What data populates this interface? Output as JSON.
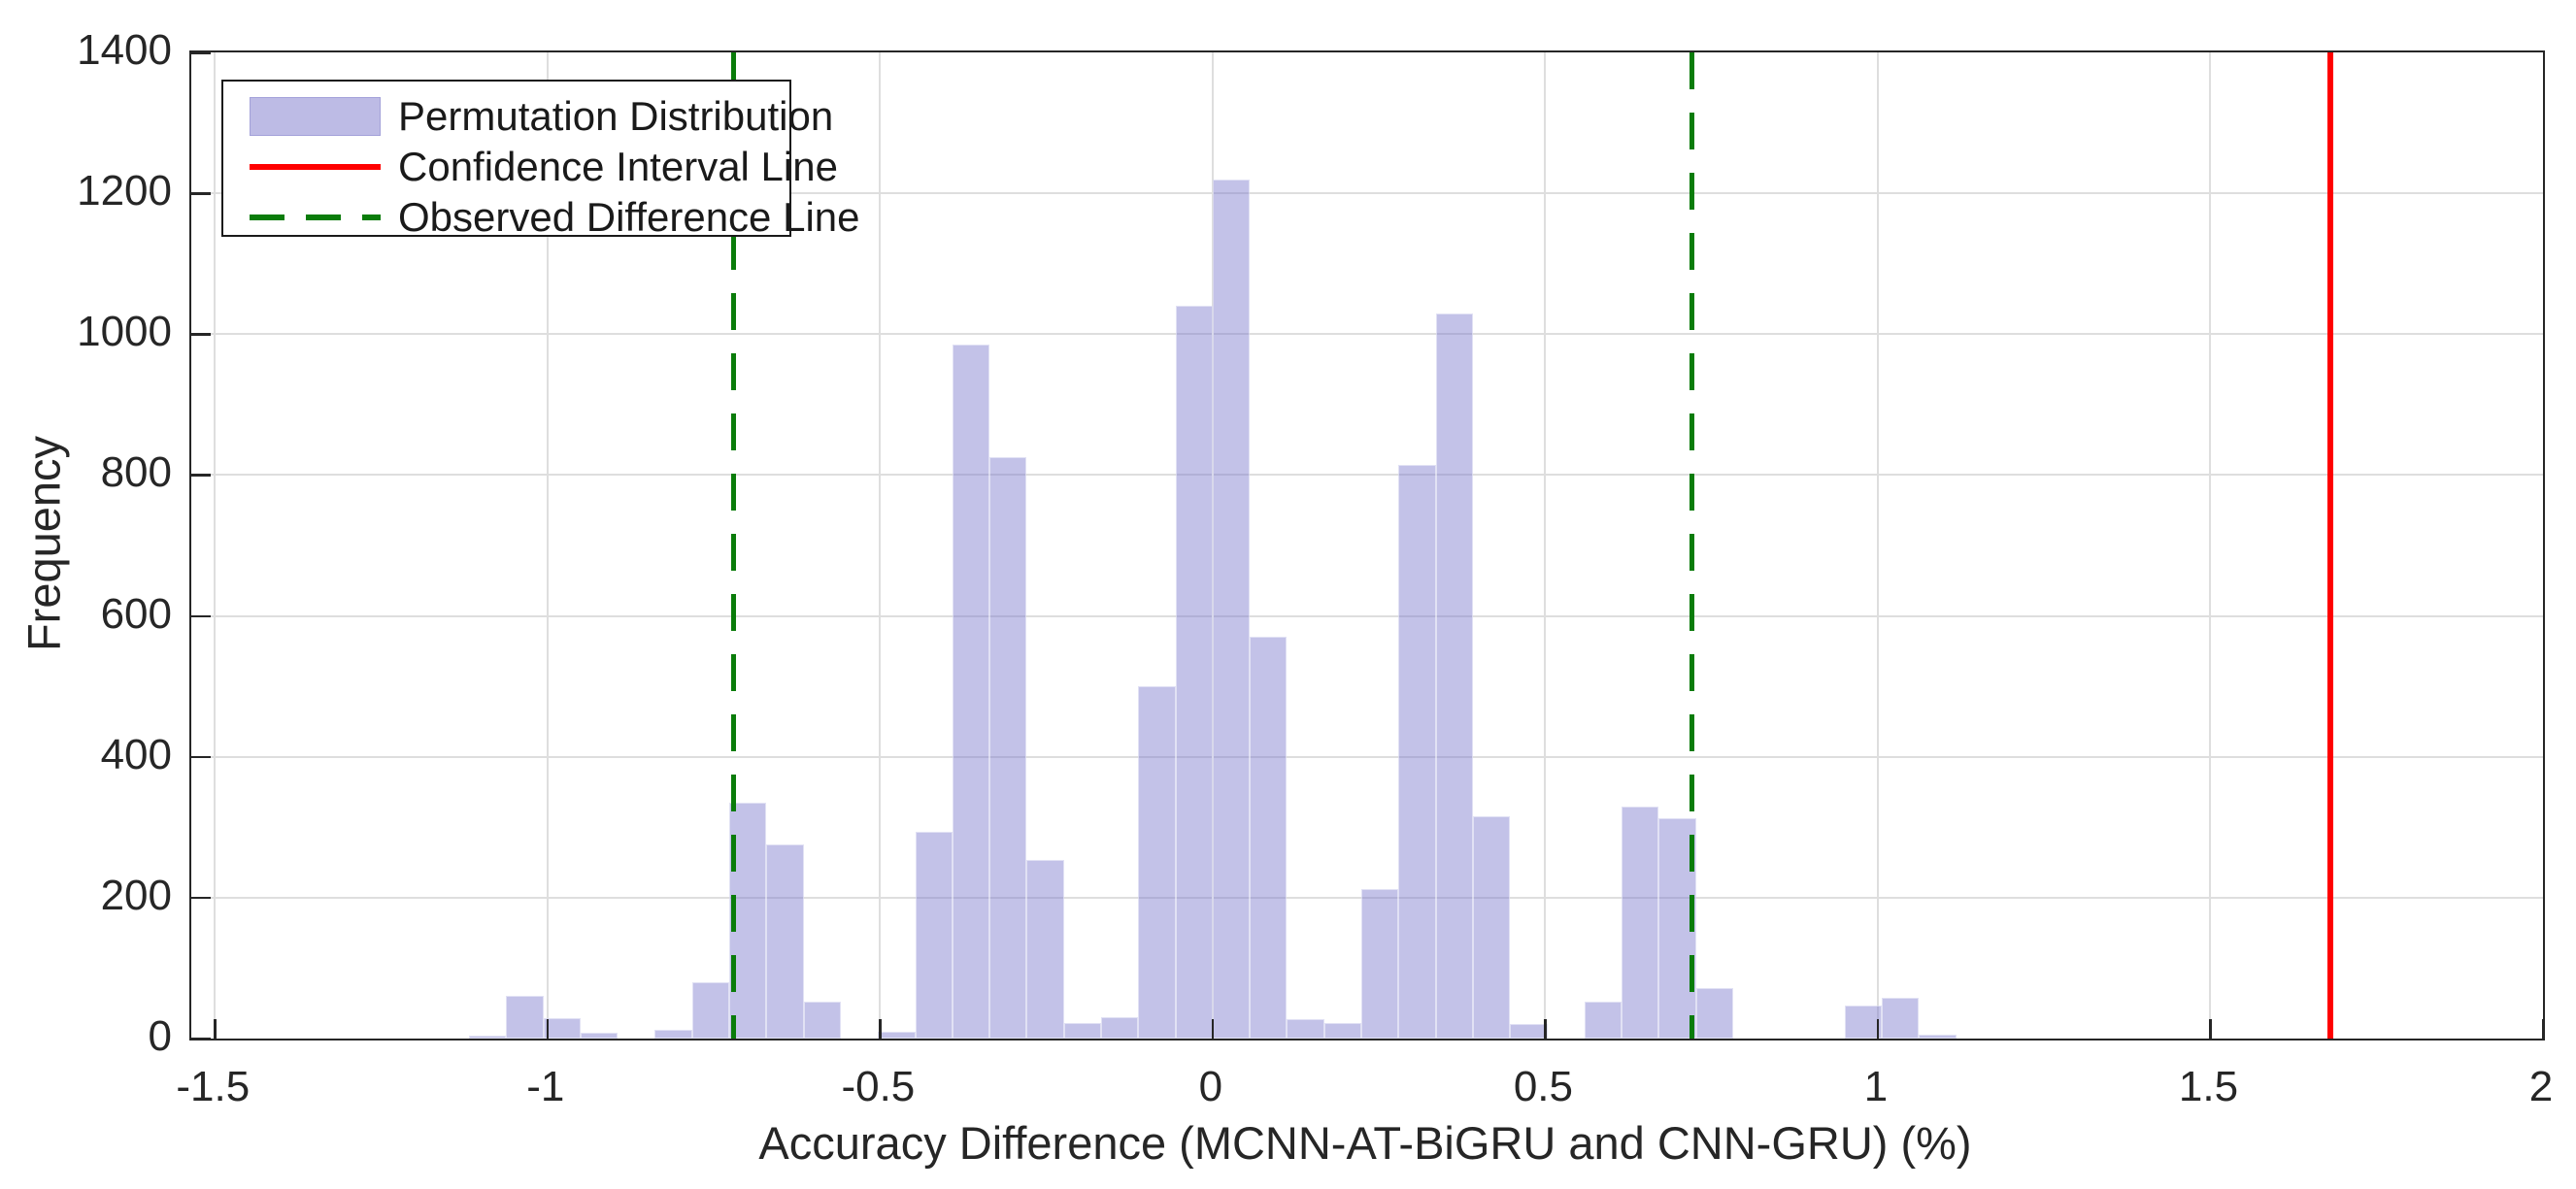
{
  "figure": {
    "background_color": "#ffffff",
    "axis_color": "#262626",
    "grid_color": "#dedede"
  },
  "legend": {
    "items": [
      {
        "label": "Permutation Distribution",
        "swatch": "patch",
        "color": "#c7c5e9"
      },
      {
        "label": "Confidence Interval Line",
        "swatch": "solid-line",
        "color": "#ff0000"
      },
      {
        "label": "Observed Difference Line",
        "swatch": "dashed-line",
        "color": "#0a7c0a"
      }
    ],
    "position": "top-left"
  },
  "chart_data": {
    "type": "bar",
    "subtype": "histogram",
    "title": "",
    "xlabel": "Accuracy Difference (MCNN-AT-BiGRU and CNN-GRU) (%)",
    "ylabel": "Frequency",
    "xlim": [
      -1.5355,
      2.0
    ],
    "ylim": [
      0,
      1400
    ],
    "grid": true,
    "x_ticks": [
      {
        "v": -1.5,
        "label": "-1.5"
      },
      {
        "v": -1.0,
        "label": "-1"
      },
      {
        "v": -0.5,
        "label": "-0.5"
      },
      {
        "v": 0.0,
        "label": "0"
      },
      {
        "v": 0.5,
        "label": "0.5"
      },
      {
        "v": 1.0,
        "label": "1"
      },
      {
        "v": 1.5,
        "label": "1.5"
      },
      {
        "v": 2.0,
        "label": "2"
      }
    ],
    "y_ticks": [
      {
        "v": 0,
        "label": "0"
      },
      {
        "v": 200,
        "label": "200"
      },
      {
        "v": 400,
        "label": "400"
      },
      {
        "v": 600,
        "label": "600"
      },
      {
        "v": 800,
        "label": "800"
      },
      {
        "v": 1000,
        "label": "1000"
      },
      {
        "v": 1200,
        "label": "1200"
      },
      {
        "v": 1400,
        "label": "1400"
      }
    ],
    "bar_color": "rgba(123,120,204,0.45)",
    "bin_width": 0.0559,
    "bins": [
      {
        "left": -1.118,
        "count": 4
      },
      {
        "left": -1.0621,
        "count": 60
      },
      {
        "left": -1.0062,
        "count": 29
      },
      {
        "left": -0.9503,
        "count": 8
      },
      {
        "left": -0.8385,
        "count": 12
      },
      {
        "left": -0.7826,
        "count": 80
      },
      {
        "left": -0.7267,
        "count": 335
      },
      {
        "left": -0.6708,
        "count": 275
      },
      {
        "left": -0.6149,
        "count": 52
      },
      {
        "left": -0.5031,
        "count": 10
      },
      {
        "left": -0.4472,
        "count": 293
      },
      {
        "left": -0.3913,
        "count": 985
      },
      {
        "left": -0.3354,
        "count": 825
      },
      {
        "left": -0.2795,
        "count": 253
      },
      {
        "left": -0.2236,
        "count": 22
      },
      {
        "left": -0.1677,
        "count": 31
      },
      {
        "left": -0.1118,
        "count": 500
      },
      {
        "left": -0.0559,
        "count": 1040
      },
      {
        "left": 0.0,
        "count": 1220
      },
      {
        "left": 0.0559,
        "count": 570
      },
      {
        "left": 0.1118,
        "count": 27
      },
      {
        "left": 0.1677,
        "count": 22
      },
      {
        "left": 0.2236,
        "count": 212
      },
      {
        "left": 0.2795,
        "count": 815
      },
      {
        "left": 0.3354,
        "count": 1030
      },
      {
        "left": 0.3913,
        "count": 315
      },
      {
        "left": 0.4472,
        "count": 20
      },
      {
        "left": 0.559,
        "count": 52
      },
      {
        "left": 0.6149,
        "count": 330
      },
      {
        "left": 0.6708,
        "count": 313
      },
      {
        "left": 0.7267,
        "count": 72
      },
      {
        "left": 0.9503,
        "count": 47
      },
      {
        "left": 1.0062,
        "count": 58
      },
      {
        "left": 1.0621,
        "count": 5
      }
    ],
    "vlines": [
      {
        "x": -0.72,
        "style": "dashed",
        "color": "#0a7c0a",
        "name": "observed-difference-line-left"
      },
      {
        "x": 0.72,
        "style": "dashed",
        "color": "#0a7c0a",
        "name": "observed-difference-line-right"
      },
      {
        "x": 1.68,
        "style": "solid",
        "color": "#ff0000",
        "name": "confidence-interval-line"
      }
    ]
  }
}
